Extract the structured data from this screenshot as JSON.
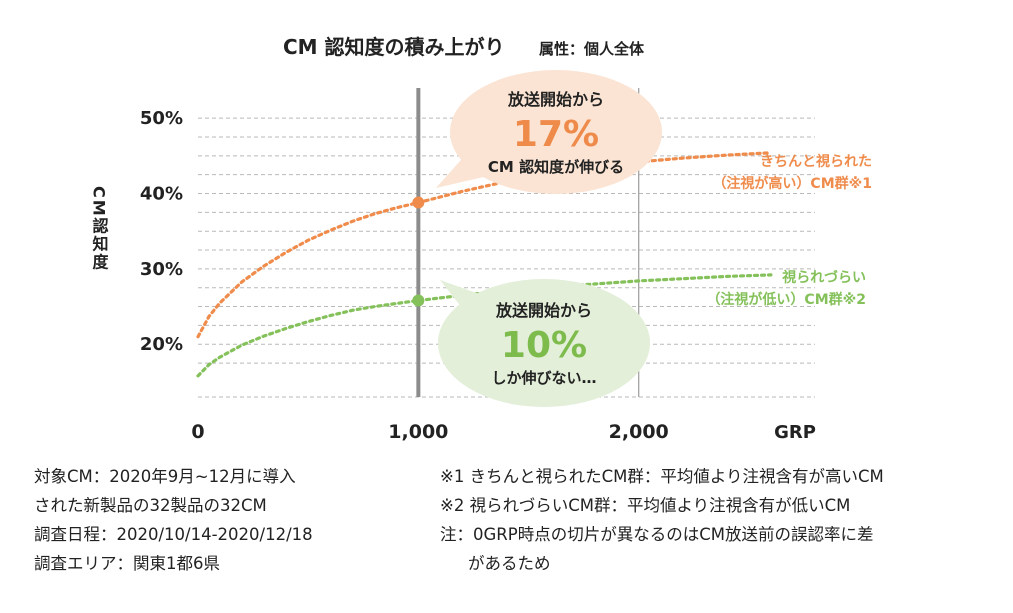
{
  "chart_data": {
    "type": "line",
    "title": "CM 認知度の積み上がり",
    "subtitle": "属性：個人全体",
    "ylabel": "CM認知度",
    "xlabel": "GRP",
    "xlim": [
      0,
      2800
    ],
    "ylim": [
      13,
      54
    ],
    "y_ticks": [
      {
        "value": 50,
        "label": "50%"
      },
      {
        "value": 40,
        "label": "40%"
      },
      {
        "value": 30,
        "label": "30%"
      },
      {
        "value": 20,
        "label": "20%"
      }
    ],
    "x_ticks": [
      {
        "value": 0,
        "label": "0"
      },
      {
        "value": 1000,
        "label": "1,000"
      },
      {
        "value": 2000,
        "label": "2,000"
      }
    ],
    "grid_y_values": [
      17.5,
      20,
      22.5,
      25,
      27.5,
      30,
      32.5,
      35,
      37.5,
      40,
      42.5,
      45,
      47.5,
      50
    ],
    "series": [
      {
        "name": "きちんと視られた（注視が高い）CM群※1",
        "label_lines": [
          "きちんと視られた",
          "（注視が高い）CM群※1"
        ],
        "color": "#ef8c4c",
        "x": [
          0,
          50,
          100,
          200,
          300,
          400,
          500,
          600,
          700,
          800,
          900,
          1000,
          1200,
          1400,
          1600,
          1800,
          2000,
          2200,
          2400,
          2600
        ],
        "y": [
          21.0,
          23.7,
          25.5,
          28.3,
          30.4,
          32.2,
          33.8,
          35.1,
          36.3,
          37.3,
          38.1,
          38.8,
          40.3,
          41.6,
          42.7,
          43.5,
          44.2,
          44.7,
          45.1,
          45.4
        ]
      },
      {
        "name": "視られづらい（注視が低い）CM群※2",
        "label_lines": [
          "視られづらい",
          "（注視が低い）CM群※2"
        ],
        "color": "#85c15a",
        "x": [
          0,
          50,
          100,
          200,
          300,
          400,
          500,
          600,
          700,
          800,
          900,
          1000,
          1200,
          1400,
          1600,
          1800,
          2000,
          2200,
          2400,
          2600
        ],
        "y": [
          15.8,
          17.3,
          18.3,
          19.9,
          21.1,
          22.1,
          23.0,
          23.8,
          24.5,
          25.0,
          25.4,
          25.8,
          26.5,
          27.1,
          27.6,
          28.0,
          28.4,
          28.7,
          29.0,
          29.2
        ]
      }
    ],
    "highlight_x": 1000,
    "markers": [
      {
        "x": 1000,
        "y": 38.8,
        "color": "#ef8c4c"
      },
      {
        "x": 1000,
        "y": 25.8,
        "color": "#85c15a"
      }
    ],
    "callouts": [
      {
        "line1": "放送開始から",
        "value": "17%",
        "line3": "CM 認知度が伸びる",
        "fill": "#fbe4d3",
        "accent": "#ee8a4a"
      },
      {
        "line1": "放送開始から",
        "value": "10%",
        "line3": "しか伸びない…",
        "fill": "#e3efd9",
        "accent": "#7dbb4c"
      }
    ]
  },
  "notes": {
    "left": [
      "対象CM：2020年9月~12月に導入",
      "された新製品の32製品の32CM",
      "調査日程：2020/10/14-2020/12/18",
      "調査エリア：関東1都6県"
    ],
    "right": [
      "※1 きちんと視られたCM群：平均値より注視含有が高いCM",
      "※2 視られづらいCM群：平均値より注視含有が低いCM",
      "注：0GRP時点の切片が異なるのはCM放送前の誤認率に差",
      "があるため"
    ]
  }
}
